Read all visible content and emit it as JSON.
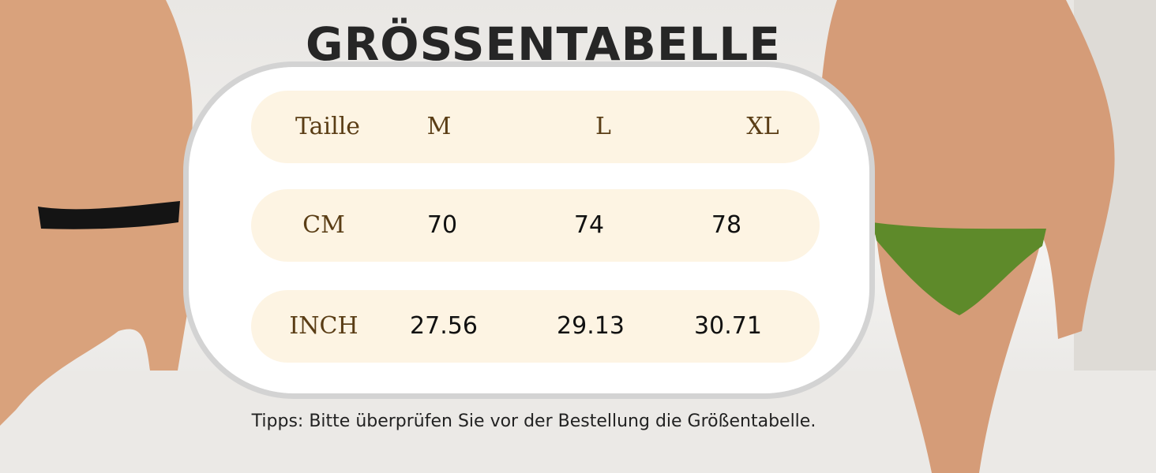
{
  "header": {
    "title": "GRÖSSENTABELLE"
  },
  "table": {
    "rows": [
      [
        "Taille",
        "M",
        "L",
        "XL"
      ],
      [
        "CM",
        "70",
        "74",
        "78"
      ],
      [
        "INCH",
        "27.56",
        "29.13",
        "30.71"
      ]
    ]
  },
  "note": "Tipps: Bitte überprüfen Sie vor der Bestellung die Größentabelle."
}
